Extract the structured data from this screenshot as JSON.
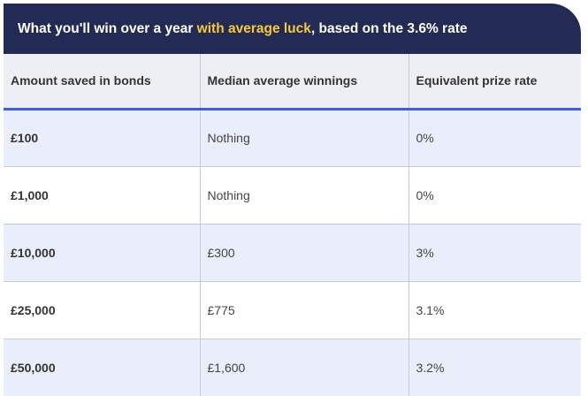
{
  "banner": {
    "prefix": "What you'll win over a year ",
    "highlight": "with average luck",
    "suffix": ", based on the 3.6% rate"
  },
  "colors": {
    "banner_bg": "#232b55",
    "highlight": "#f6c935",
    "header_bg": "#eeeff4",
    "header_rule": "#3b5fe3",
    "row_shade": "#eaeefb"
  },
  "table": {
    "headers": [
      "Amount saved in bonds",
      "Median average winnings",
      "Equivalent prize rate"
    ],
    "rows": [
      {
        "amount": "£100",
        "winnings": "Nothing",
        "rate": "0%"
      },
      {
        "amount": "£1,000",
        "winnings": "Nothing",
        "rate": "0%"
      },
      {
        "amount": "£10,000",
        "winnings": "£300",
        "rate": "3%"
      },
      {
        "amount": "£25,000",
        "winnings": "£775",
        "rate": "3.1%"
      },
      {
        "amount": "£50,000",
        "winnings": "£1,600",
        "rate": "3.2%"
      }
    ]
  }
}
